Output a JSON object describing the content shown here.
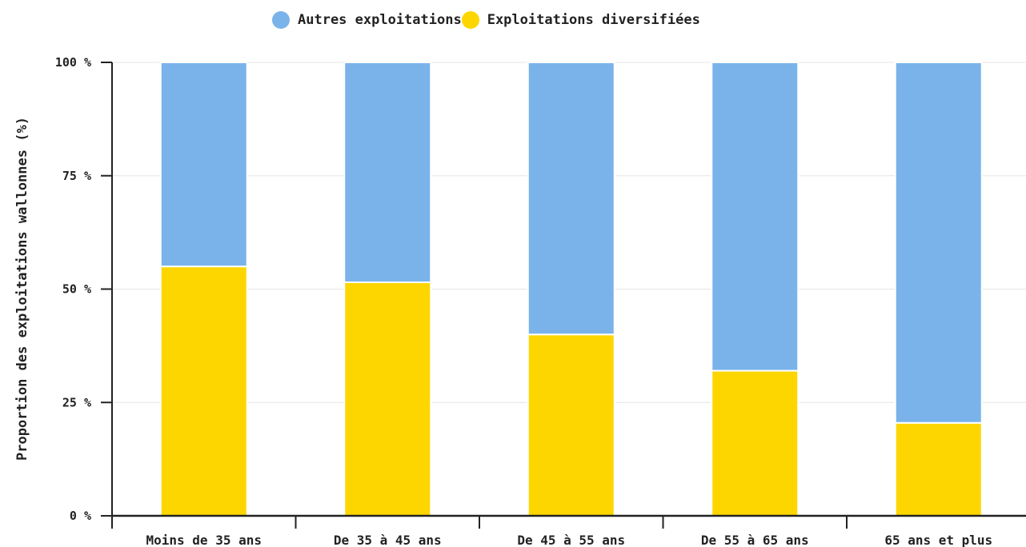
{
  "chart_data": {
    "type": "bar",
    "stacked": true,
    "categories": [
      "Moins de 35 ans",
      "De 35 à 45 ans",
      "De 45 à 55 ans",
      "De 55 à 65 ans",
      "65 ans et plus"
    ],
    "series": [
      {
        "name": "Exploitations diversifiées",
        "color": "#FDD600",
        "values": [
          55,
          51.5,
          40,
          32,
          20.5
        ]
      },
      {
        "name": "Autres exploitations",
        "color": "#7AB3EA",
        "values": [
          45,
          48.5,
          60,
          68,
          79.5
        ]
      }
    ],
    "title": "",
    "xlabel": "",
    "ylabel": "Proportion des exploitations wallonnes (%)",
    "ylim": [
      0,
      100
    ],
    "yticks": [
      0,
      25,
      50,
      75,
      100
    ],
    "ytick_labels": [
      "0 %",
      "25 %",
      "50 %",
      "75 %",
      "100 %"
    ],
    "grid": true,
    "legend_position": "top"
  }
}
